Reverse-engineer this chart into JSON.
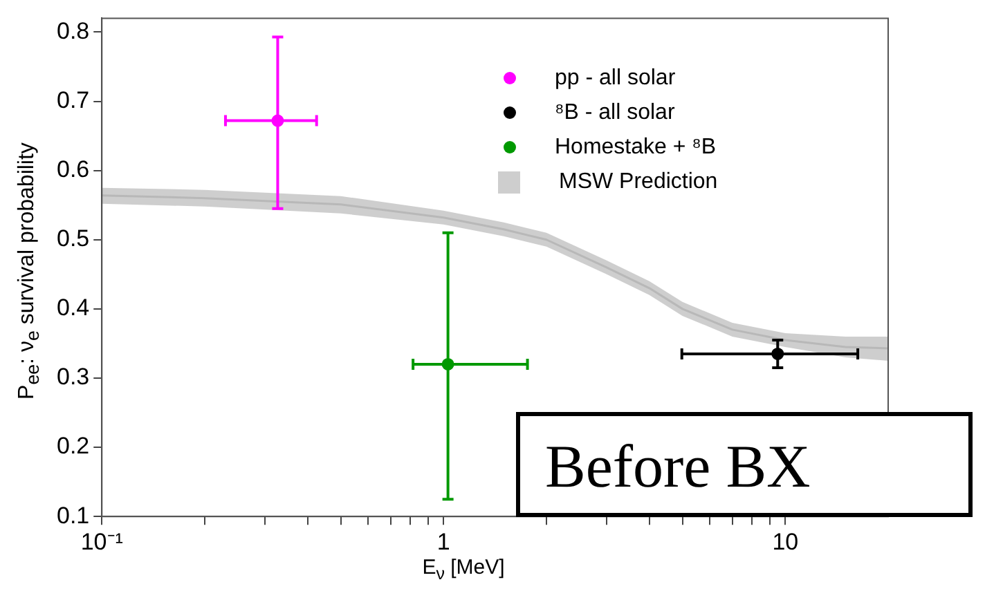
{
  "chart_data": {
    "type": "scatter",
    "xlabel": "E$_{ν}$ [MeV]",
    "ylabel": "P$_{ee}$:  ν$_{e}$ survival probability",
    "log": "x",
    "xlim": [
      0.1,
      20
    ],
    "ylim": [
      0.1,
      0.82
    ],
    "xticks": [
      {
        "value": 0.1,
        "label": "10⁻¹"
      },
      {
        "value": 0.2,
        "label": null
      },
      {
        "value": 0.3,
        "label": null
      },
      {
        "value": 0.4,
        "label": null
      },
      {
        "value": 0.5,
        "label": null
      },
      {
        "value": 0.6,
        "label": null
      },
      {
        "value": 0.7,
        "label": null
      },
      {
        "value": 0.8,
        "label": null
      },
      {
        "value": 0.9,
        "label": null
      },
      1,
      {
        "value": 2,
        "label": null
      },
      {
        "value": 3,
        "label": null
      },
      {
        "value": 4,
        "label": null
      },
      {
        "value": 5,
        "label": null
      },
      {
        "value": 6,
        "label": null
      },
      {
        "value": 7,
        "label": null
      },
      {
        "value": 8,
        "label": null
      },
      {
        "value": 9,
        "label": null
      },
      10
    ],
    "yticks": [
      0.1,
      0.2,
      0.3,
      0.4,
      0.5,
      0.6,
      0.7,
      0.8
    ],
    "grid": false,
    "legend": "top right",
    "series": [
      {
        "name": "pp - all solar",
        "marker": "circle",
        "color": "#ff00ff",
        "x": [
          0.327
        ],
        "values": [
          0.672
        ],
        "errors": [
          [
            0.545,
            0.793
          ]
        ],
        "xerrors": [
          [
            0.23,
            0.425
          ]
        ]
      },
      {
        "name": "⁸B - all solar",
        "marker": "circle",
        "color": "#000000",
        "x": [
          9.5
        ],
        "values": [
          0.335
        ],
        "errors": [
          [
            0.315,
            0.355
          ]
        ],
        "xerrors": [
          [
            4.98,
            16.3
          ]
        ]
      },
      {
        "name": "Homestake + ⁸B",
        "marker": "circle",
        "color": "#009900",
        "x": [
          1.03
        ],
        "values": [
          0.32
        ],
        "errors": [
          [
            0.125,
            0.51
          ]
        ],
        "xerrors": [
          [
            0.814,
            1.76
          ]
        ]
      },
      {
        "name": "MSW Prediction",
        "type": "line",
        "marker": "none",
        "color": "#b8b8b8",
        "x": [
          0.1,
          0.2,
          0.5,
          1,
          1.5,
          2,
          3,
          4,
          5,
          7,
          10,
          15,
          20
        ],
        "values": [
          0.564,
          0.56,
          0.551,
          0.532,
          0.515,
          0.5,
          0.46,
          0.43,
          0.4,
          0.37,
          0.355,
          0.345,
          0.343
        ],
        "lower": [
          0.552,
          0.548,
          0.538,
          0.522,
          0.505,
          0.49,
          0.45,
          0.42,
          0.39,
          0.36,
          0.345,
          0.33,
          0.325
        ],
        "upper": [
          0.575,
          0.572,
          0.563,
          0.542,
          0.525,
          0.51,
          0.47,
          0.44,
          0.41,
          0.38,
          0.365,
          0.36,
          0.36
        ]
      }
    ],
    "annotations": [
      "Before BX"
    ]
  }
}
